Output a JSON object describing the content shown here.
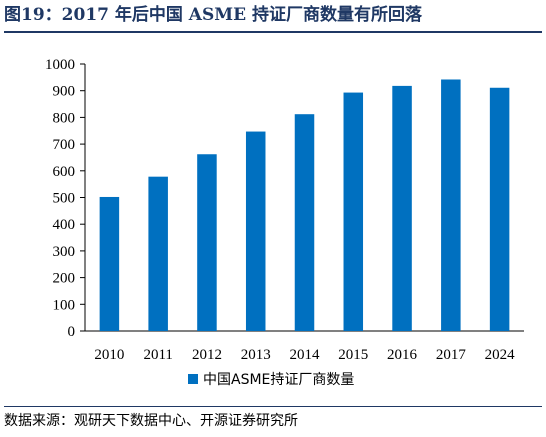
{
  "header": {
    "title": "图19：2017 年后中国 ASME 持证厂商数量有所回落"
  },
  "footer": {
    "source": "数据来源：观研天下数据中心、开源证券研究所"
  },
  "chart_data": {
    "type": "bar",
    "title": "",
    "xlabel": "",
    "ylabel": "",
    "categories": [
      "2010",
      "2011",
      "2012",
      "2013",
      "2014",
      "2015",
      "2016",
      "2017",
      "2024"
    ],
    "series": [
      {
        "name": "中国ASME持证厂商数量",
        "values": [
          502,
          578,
          662,
          747,
          812,
          893,
          918,
          942,
          911
        ],
        "color": "#0070c0"
      }
    ],
    "ylim": [
      0,
      1000
    ],
    "yticks": [
      0,
      100,
      200,
      300,
      400,
      500,
      600,
      700,
      800,
      900,
      1000
    ],
    "grid": false,
    "legend": "bottom"
  }
}
